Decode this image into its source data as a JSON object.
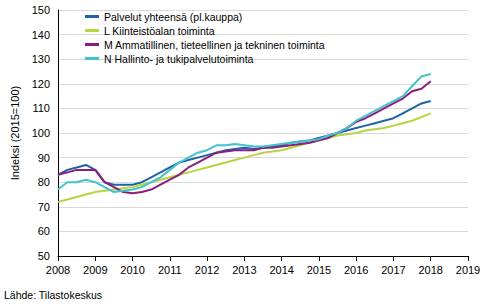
{
  "chart_data": {
    "type": "line",
    "y_label": "Indeksi (2015=100)",
    "source": "Lähde: Tilastokeskus",
    "x": [
      2008,
      2008.25,
      2008.5,
      2008.75,
      2009,
      2009.25,
      2009.5,
      2009.75,
      2010,
      2010.25,
      2010.5,
      2010.75,
      2011,
      2011.25,
      2011.5,
      2011.75,
      2012,
      2012.25,
      2012.5,
      2012.75,
      2013,
      2013.25,
      2013.5,
      2013.75,
      2014,
      2014.25,
      2014.5,
      2014.75,
      2015,
      2015.25,
      2015.5,
      2015.75,
      2016,
      2016.25,
      2016.5,
      2016.75,
      2017,
      2017.25,
      2017.5,
      2017.75,
      2018
    ],
    "series": [
      {
        "name": "Palvelut yhteensä (pl.kauppa)",
        "color": "#1f63a6",
        "values": [
          83,
          85,
          86,
          87,
          85,
          80,
          79,
          79,
          79,
          80,
          82,
          84,
          86,
          88,
          89,
          90,
          91,
          92,
          93,
          93.5,
          94,
          93.5,
          94,
          94.5,
          95,
          96,
          96.5,
          97,
          98,
          99,
          100,
          101,
          102,
          103,
          104,
          105,
          106,
          108,
          110,
          112,
          113
        ]
      },
      {
        "name": "L Kiinteistöalan toiminta",
        "color": "#b8d43f",
        "values": [
          72,
          73,
          74,
          75,
          76,
          76.5,
          77,
          77.5,
          78,
          79,
          80,
          81,
          82,
          83,
          84,
          85,
          86,
          87,
          88,
          89,
          90,
          91,
          92,
          92.5,
          93,
          94,
          95,
          96,
          97,
          98,
          99,
          99.5,
          100,
          101,
          101.5,
          102,
          103,
          104,
          105,
          106.5,
          108
        ]
      },
      {
        "name": "M Ammatillinen, tieteellinen ja tekninen toiminta",
        "color": "#8c1d7c",
        "values": [
          83,
          84,
          85,
          85,
          85,
          80,
          78,
          76,
          75.5,
          76,
          77,
          79,
          81,
          83,
          86,
          88,
          90,
          92,
          92.5,
          93,
          93,
          93,
          94,
          94,
          94.5,
          95,
          95.5,
          96,
          97,
          98,
          100,
          102,
          104.5,
          106,
          108,
          110,
          112,
          114,
          117,
          118,
          121
        ]
      },
      {
        "name": "N Hallinto- ja tukipalvelutoiminta",
        "color": "#41c3cb",
        "values": [
          77,
          80,
          80,
          81,
          80,
          78,
          76,
          76.5,
          77,
          78,
          80,
          82,
          85,
          88,
          90,
          92,
          93,
          95,
          95,
          95.5,
          95,
          94.5,
          94.5,
          95,
          95.5,
          96,
          96.5,
          97,
          97.5,
          99,
          100,
          102,
          105,
          107,
          109,
          111,
          113,
          115,
          119,
          123,
          124
        ]
      }
    ],
    "xlim": [
      2008,
      2019
    ],
    "xticks": [
      2008,
      2009,
      2010,
      2011,
      2012,
      2013,
      2014,
      2015,
      2016,
      2017,
      2018,
      2019
    ],
    "ylim": [
      50,
      150
    ],
    "yticks": [
      50,
      60,
      70,
      80,
      90,
      100,
      110,
      120,
      130,
      140,
      150
    ],
    "grid": true,
    "legend": "top-left"
  }
}
